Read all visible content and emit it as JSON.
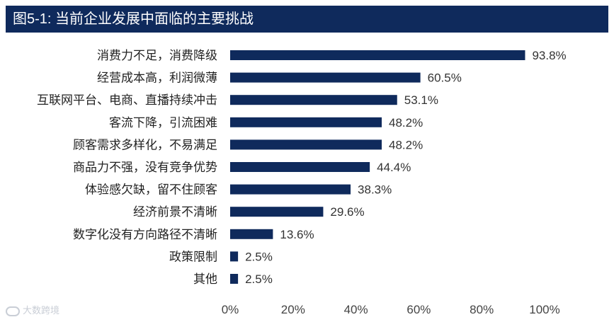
{
  "header": {
    "title": "图5-1: 当前企业发展中面临的主要挑战"
  },
  "watermark": {
    "text": "大数跨境"
  },
  "colors": {
    "bar": "#0f2a5c",
    "title_bg": "#0f2a5c"
  },
  "chart_data": {
    "type": "bar",
    "orientation": "horizontal",
    "title": "图5-1: 当前企业发展中面临的主要挑战",
    "categories": [
      "消费力不足，消费降级",
      "经营成本高，利润微薄",
      "互联网平台、电商、直播持续冲击",
      "客流下降，引流困难",
      "顾客需求多样化，不易满足",
      "商品力不强，没有竞争优势",
      "体验感欠缺，留不住顾客",
      "经济前景不清晰",
      "数字化没有方向路径不清晰",
      "政策限制",
      "其他"
    ],
    "values": [
      93.8,
      60.5,
      53.1,
      48.2,
      48.2,
      44.4,
      38.3,
      29.6,
      13.6,
      2.5,
      2.5
    ],
    "value_labels": [
      "93.8%",
      "60.5%",
      "53.1%",
      "48.2%",
      "48.2%",
      "44.4%",
      "38.3%",
      "29.6%",
      "13.6%",
      "2.5%",
      "2.5%"
    ],
    "xlim": [
      0,
      100
    ],
    "x_ticks": [
      "0%",
      "20%",
      "40%",
      "60%",
      "80%",
      "100%"
    ],
    "grid": false,
    "legend": "none"
  }
}
